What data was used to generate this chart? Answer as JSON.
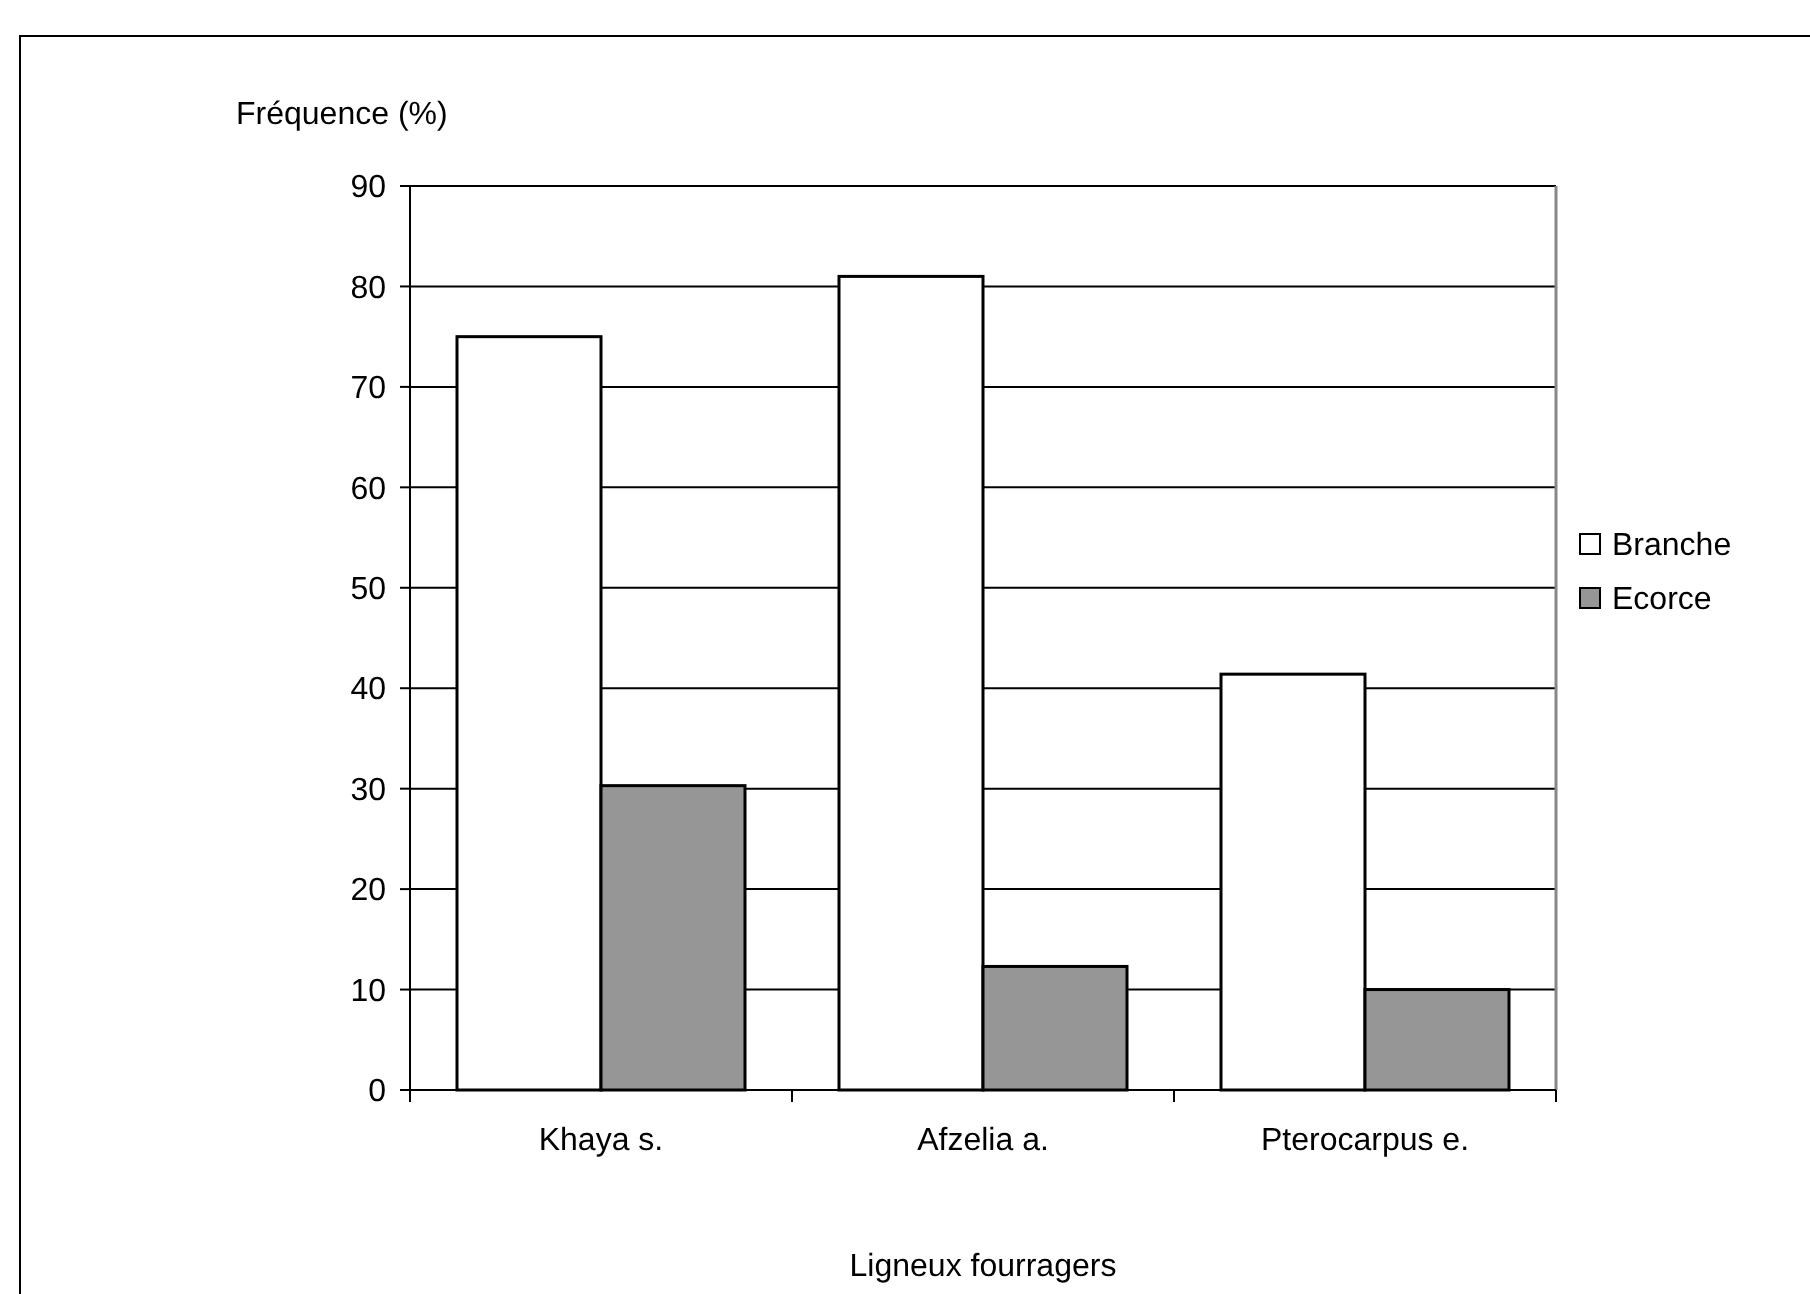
{
  "chart_data": {
    "type": "bar",
    "ylabel": "Fréquence (%)",
    "xlabel": "Ligneux fourragers",
    "categories": [
      "Khaya s.",
      "Afzelia a.",
      "Pterocarpus e."
    ],
    "series": [
      {
        "name": "Branche",
        "color": "#ffffff",
        "values": [
          75,
          81,
          41.4
        ]
      },
      {
        "name": "Ecorce",
        "color": "#969696",
        "values": [
          30.3,
          12.3,
          10
        ]
      }
    ],
    "ylim": [
      0,
      90
    ],
    "yticks": [
      0,
      10,
      20,
      30,
      40,
      50,
      60,
      70,
      80,
      90
    ],
    "grid": "y",
    "legend": "right"
  }
}
